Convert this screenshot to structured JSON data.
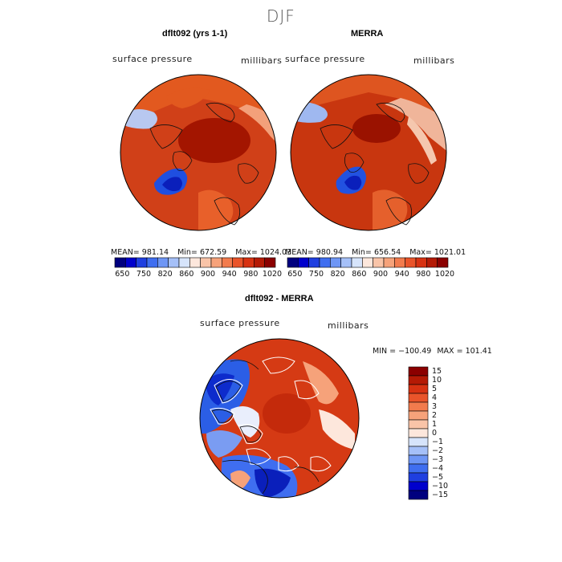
{
  "season": "DJF",
  "colors": {
    "neg_ramp": [
      "#00007f",
      "#0000cc",
      "#1f3fe0",
      "#3f6ef0",
      "#6e96f5",
      "#a5c0f8",
      "#d6e4fb"
    ],
    "pos_ramp": [
      "#fde7dc",
      "#f9c4a8",
      "#f6a27a",
      "#f27b4d",
      "#e9542a",
      "#d73212",
      "#b41a05",
      "#8b0000"
    ],
    "land": "#d84a20",
    "ocean_high": "#c92e10"
  },
  "panels": [
    {
      "title": "dflt092 (yrs 1-1)",
      "field": "surface pressure",
      "units": "millibars",
      "stats": {
        "mean_label": "MEAN=",
        "mean": "981.14",
        "min_label": "Min=",
        "min": "672.59",
        "max_label": "Max=",
        "max": "1024.03"
      }
    },
    {
      "title": "MERRA",
      "field": "surface pressure",
      "units": "millibars",
      "stats": {
        "mean_label": "MEAN=",
        "mean": "980.94",
        "min_label": "Min=",
        "min": "656.54",
        "max_label": "Max=",
        "max": "1021.01"
      }
    },
    {
      "title": "dflt092 - MERRA",
      "field": "surface pressure",
      "units": "millibars",
      "stats": {
        "min_label": "MIN =",
        "min": "−100.49",
        "max_label": "MAX =",
        "max": "101.41"
      }
    }
  ],
  "chart_data": [
    {
      "type": "heatmap",
      "projection": "north-polar-stereographic",
      "title": "dflt092 (yrs 1-1)",
      "variable": "surface pressure",
      "units": "millibars",
      "colorbar_ticks": [
        "650",
        "750",
        "820",
        "860",
        "900",
        "940",
        "980",
        "1020"
      ],
      "colorbar_levels": [
        650,
        700,
        750,
        800,
        820,
        840,
        860,
        880,
        900,
        920,
        940,
        960,
        980,
        1000,
        1020
      ],
      "mean": 981.14,
      "min": 672.59,
      "max": 1024.03
    },
    {
      "type": "heatmap",
      "projection": "north-polar-stereographic",
      "title": "MERRA",
      "variable": "surface pressure",
      "units": "millibars",
      "colorbar_ticks": [
        "650",
        "750",
        "820",
        "860",
        "900",
        "940",
        "980",
        "1020"
      ],
      "colorbar_levels": [
        650,
        700,
        750,
        800,
        820,
        840,
        860,
        880,
        900,
        920,
        940,
        960,
        980,
        1000,
        1020
      ],
      "mean": 980.94,
      "min": 656.54,
      "max": 1021.01
    },
    {
      "type": "heatmap",
      "projection": "north-polar-stereographic",
      "title": "dflt092 - MERRA",
      "variable": "surface pressure",
      "units": "millibars",
      "colorbar_ticks": [
        "15",
        "10",
        "5",
        "4",
        "3",
        "2",
        "1",
        "0",
        "−1",
        "−2",
        "−3",
        "−4",
        "−5",
        "−10",
        "−15"
      ],
      "colorbar_levels": [
        15,
        10,
        5,
        4,
        3,
        2,
        1,
        0,
        -1,
        -2,
        -3,
        -4,
        -5,
        -10,
        -15
      ],
      "min": -100.49,
      "max": 101.41
    }
  ]
}
